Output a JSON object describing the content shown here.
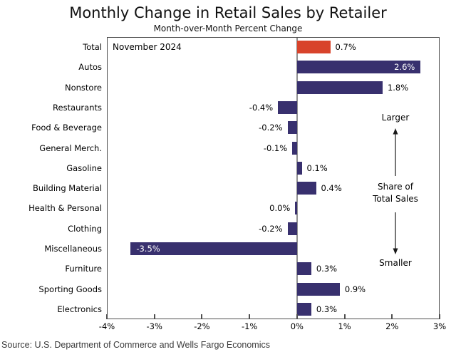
{
  "source": "Source: U.S. Department of Commerce and Wells Fargo Economics",
  "colors": {
    "bar_default": "#38306e",
    "bar_highlight": "#d8432b",
    "zero_line": "#909090",
    "frame": "#4f4f4f",
    "inside_label_text": "#ffffff"
  },
  "chart_data": {
    "type": "bar",
    "orientation": "horizontal",
    "title": "Monthly Change in Retail Sales by Retailer",
    "subtitle": "Month-over-Month Percent Change",
    "date_label": "November 2024",
    "xlim": [
      -4,
      3
    ],
    "x_tick_values": [
      -4,
      -3,
      -2,
      -1,
      0,
      1,
      2,
      3
    ],
    "x_tick_labels": [
      "-4%",
      "-3%",
      "-2%",
      "-1%",
      "0%",
      "1%",
      "2%",
      "3%"
    ],
    "grid": "zero-line-only",
    "legend": "none",
    "points": [
      {
        "category": "Total",
        "value": 0.7,
        "display": "0.7%",
        "label_pos": "right",
        "color": "#d8432b"
      },
      {
        "category": "Autos",
        "value": 2.6,
        "display": "2.6%",
        "label_pos": "inside-right"
      },
      {
        "category": "Nonstore",
        "value": 1.8,
        "display": "1.8%",
        "label_pos": "right"
      },
      {
        "category": "Restaurants",
        "value": -0.4,
        "display": "-0.4%",
        "label_pos": "left"
      },
      {
        "category": "Food & Beverage",
        "value": -0.2,
        "display": "-0.2%",
        "label_pos": "left"
      },
      {
        "category": "General Merch.",
        "value": -0.1,
        "display": "-0.1%",
        "label_pos": "left"
      },
      {
        "category": "Gasoline",
        "value": 0.1,
        "display": "0.1%",
        "label_pos": "right"
      },
      {
        "category": "Building Material",
        "value": 0.4,
        "display": "0.4%",
        "label_pos": "right"
      },
      {
        "category": "Health & Personal",
        "value": 0.0,
        "display": "0.0%",
        "label_pos": "left",
        "bar_side": "neg"
      },
      {
        "category": "Clothing",
        "value": -0.2,
        "display": "-0.2%",
        "label_pos": "left"
      },
      {
        "category": "Miscellaneous",
        "value": -3.5,
        "display": "-3.5%",
        "label_pos": "inside-left"
      },
      {
        "category": "Furniture",
        "value": 0.3,
        "display": "0.3%",
        "label_pos": "right"
      },
      {
        "category": "Sporting Goods",
        "value": 0.9,
        "display": "0.9%",
        "label_pos": "right"
      },
      {
        "category": "Electronics",
        "value": 0.3,
        "display": "0.3%",
        "label_pos": "right"
      }
    ],
    "side_annotation": {
      "larger": "Larger",
      "share_line1": "Share of",
      "share_line2": "Total Sales",
      "smaller": "Smaller"
    }
  }
}
